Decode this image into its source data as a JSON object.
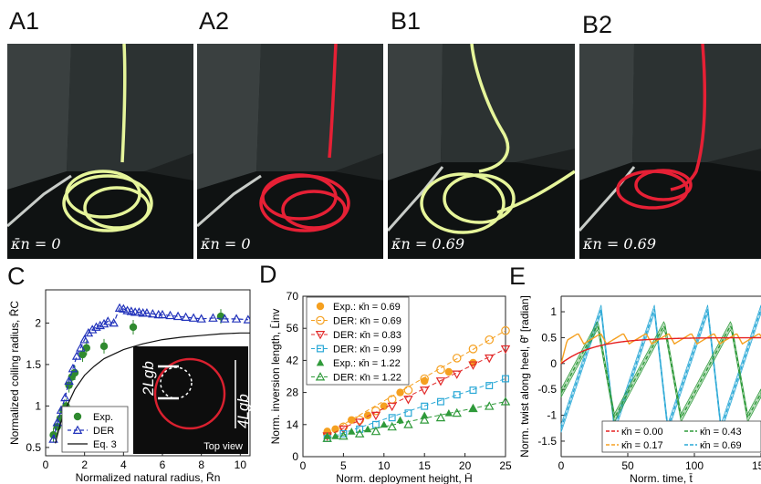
{
  "panels": {
    "A1": {
      "label": "A1",
      "kappa": "κ̄n = 0",
      "rod_color": "#e6f59a"
    },
    "A2": {
      "label": "A2",
      "kappa": "κ̄n = 0",
      "rod_color": "#e62035"
    },
    "B1": {
      "label": "B1",
      "kappa": "κ̄n = 0.69",
      "rod_color": "#e6f59a"
    },
    "B2": {
      "label": "B2",
      "kappa": "κ̄n = 0.69",
      "rod_color": "#e62035"
    },
    "C": {
      "label": "C"
    },
    "D": {
      "label": "D"
    },
    "E": {
      "label": "E"
    }
  },
  "chart_data": [
    {
      "id": "C",
      "type": "scatter",
      "xlabel": "Normalized natural radius, R̄n",
      "ylabel": "Normalized coiling radius, R̄C",
      "xlim": [
        0,
        10.5
      ],
      "ylim": [
        0.4,
        2.4
      ],
      "xticks": [
        0,
        2,
        4,
        6,
        8,
        10
      ],
      "yticks": [
        0.5,
        1,
        1.5,
        2
      ],
      "series": [
        {
          "name": "Exp.",
          "style": "filled-circle",
          "color": "#2f8a2f",
          "x": [
            0.4,
            0.6,
            0.75,
            0.9,
            1.05,
            1.2,
            1.35,
            1.5,
            1.9,
            2.1,
            3.0,
            4.5,
            9.0
          ],
          "y": [
            0.65,
            0.75,
            0.85,
            0.95,
            1.0,
            1.25,
            1.35,
            1.4,
            1.62,
            1.7,
            1.72,
            1.95,
            2.08
          ]
        },
        {
          "name": "DER",
          "style": "open-triangle-dashed",
          "color": "#2233bb",
          "x": [
            0.4,
            0.6,
            0.8,
            1.0,
            1.2,
            1.4,
            1.6,
            1.8,
            2.0,
            2.2,
            2.4,
            2.6,
            2.8,
            3.0,
            3.2,
            3.5,
            3.8,
            4.0,
            4.2,
            4.4,
            4.6,
            4.8,
            5.0,
            5.2,
            5.5,
            5.8,
            6.0,
            6.4,
            6.8,
            7.2,
            7.6,
            8.0,
            8.6,
            9.2,
            9.8,
            10.4
          ],
          "y": [
            0.6,
            0.8,
            0.95,
            1.1,
            1.3,
            1.45,
            1.6,
            1.7,
            1.8,
            1.88,
            1.92,
            1.95,
            1.97,
            1.99,
            2.02,
            2.0,
            2.18,
            2.17,
            2.15,
            2.14,
            2.13,
            2.13,
            2.12,
            2.12,
            2.11,
            2.1,
            2.1,
            2.09,
            2.08,
            2.07,
            2.06,
            2.05,
            2.06,
            2.05,
            2.05,
            2.04
          ]
        },
        {
          "name": "Eq. 3",
          "style": "line",
          "color": "#111111",
          "x": [
            0.5,
            0.75,
            1,
            1.5,
            2,
            2.5,
            3,
            4,
            5,
            6,
            7,
            8,
            9,
            10,
            10.5
          ],
          "y": [
            0.55,
            0.78,
            0.95,
            1.2,
            1.37,
            1.48,
            1.57,
            1.68,
            1.75,
            1.8,
            1.83,
            1.85,
            1.87,
            1.88,
            1.88
          ]
        }
      ],
      "legend": "bottom-left",
      "inset": {
        "label": "Top view",
        "text1": "2Lgb",
        "text2": "4Lgb"
      }
    },
    {
      "id": "D",
      "type": "scatter",
      "xlabel": "Norm. deployment height, H̄",
      "ylabel": "Norm. inversion length, L̄inv",
      "xlim": [
        0,
        25
      ],
      "ylim": [
        0,
        70
      ],
      "xticks": [
        0,
        5,
        10,
        15,
        20,
        25
      ],
      "yticks": [
        0,
        14,
        28,
        42,
        56,
        70
      ],
      "legend": "top-left",
      "series": [
        {
          "name": "Exp.: κ̄n = 0.69",
          "style": "filled-circle",
          "color": "#f5a020",
          "x": [
            3,
            4,
            6,
            8,
            10,
            12,
            15,
            18,
            21
          ],
          "y": [
            11,
            12,
            16,
            18,
            22,
            28,
            33,
            37,
            41
          ]
        },
        {
          "name": "DER: κ̄n = 0.69",
          "style": "open-circle-dashed",
          "color": "#f5a020",
          "x": [
            3,
            5,
            7,
            9,
            11,
            13,
            15,
            17,
            19,
            21,
            23,
            25
          ],
          "y": [
            10,
            13,
            16,
            20,
            25,
            29,
            34,
            38,
            43,
            47,
            51,
            55
          ]
        },
        {
          "name": "DER: κ̄n = 0.83",
          "style": "open-down-triangle-dashed",
          "color": "#e22a2a",
          "x": [
            3,
            5,
            7,
            9,
            11,
            13,
            15,
            17,
            19,
            21,
            23,
            25
          ],
          "y": [
            9,
            12,
            15,
            18,
            22,
            25,
            29,
            33,
            36,
            40,
            43,
            47
          ]
        },
        {
          "name": "DER: κ̄n = 0.99",
          "style": "open-square-dashed",
          "color": "#29a8d6",
          "x": [
            3,
            5,
            7,
            9,
            11,
            13,
            15,
            17,
            19,
            21,
            23,
            25
          ],
          "y": [
            8,
            10,
            12,
            14,
            17,
            19,
            22,
            24,
            27,
            29,
            31,
            34
          ]
        },
        {
          "name": "Exp.: κ̄n = 1.22",
          "style": "filled-triangle",
          "color": "#2f9a3a",
          "x": [
            3,
            4,
            6,
            8,
            10,
            12,
            15,
            18,
            21
          ],
          "y": [
            9,
            9,
            11,
            12,
            14,
            16,
            18,
            19,
            21
          ]
        },
        {
          "name": "DER: κ̄n = 1.22",
          "style": "open-triangle-dashed",
          "color": "#2f9a3a",
          "x": [
            3,
            5,
            7,
            9,
            11,
            13,
            15,
            17,
            19,
            21,
            23,
            25
          ],
          "y": [
            8,
            9,
            10,
            11,
            13,
            14,
            16,
            17,
            19,
            21,
            22,
            24
          ]
        }
      ]
    },
    {
      "id": "E",
      "type": "line",
      "xlabel": "Norm. time, t̄",
      "ylabel": "Norm. twist along heel, θ̄′ [radian]",
      "xlim": [
        0,
        150
      ],
      "ylim": [
        -1.8,
        1.3
      ],
      "xticks": [
        0,
        50,
        100,
        150
      ],
      "yticks": [
        -1.5,
        -1,
        -0.5,
        0,
        0.5,
        1
      ],
      "legend": "bottom",
      "series": [
        {
          "name": "κ̄n = 0.00",
          "color": "#e62020",
          "period": 0,
          "amp": 0.0
        },
        {
          "name": "κ̄n = 0.17",
          "color": "#f5a020",
          "period": 17,
          "amp": 0.25
        },
        {
          "name": "κ̄n = 0.43",
          "color": "#2f9a3a",
          "period": 50,
          "amp": 0.9
        },
        {
          "name": "κ̄n = 0.69",
          "color": "#29a8d6",
          "period": 40,
          "amp": 1.15
        }
      ]
    }
  ]
}
